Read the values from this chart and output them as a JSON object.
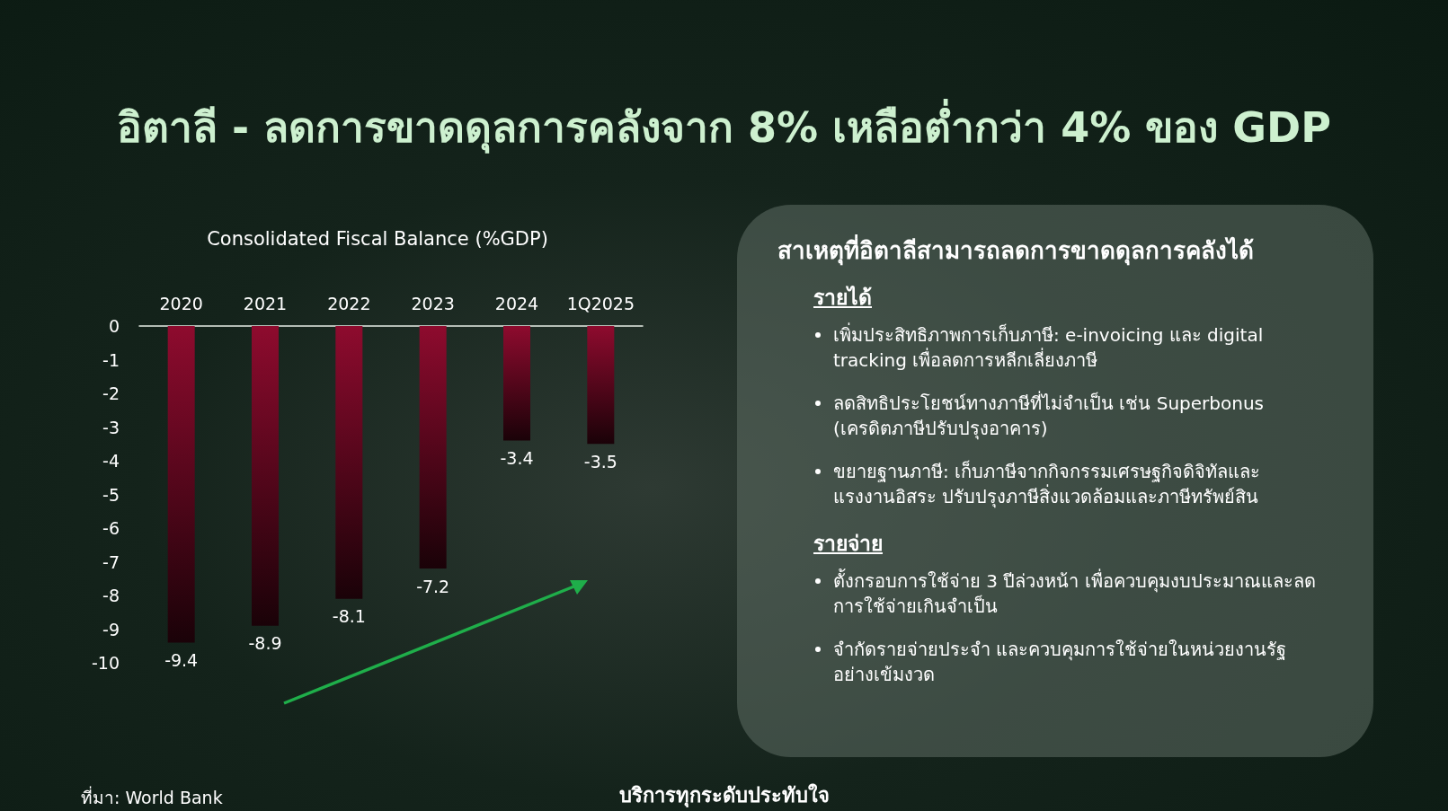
{
  "chart_data": [
    {
      "type": "other",
      "title": "อิตาลี - ลดการขาดดุลการคลังจาก 8% เหลือต่ำกว่า 4% ของ GDP"
    },
    {
      "type": "bar",
      "title": "Consolidated Fiscal Balance (%GDP)",
      "categories": [
        "2020",
        "2021",
        "2022",
        "2023",
        "2024",
        "1Q2025"
      ],
      "values": [
        -9.4,
        -8.9,
        -8.1,
        -7.2,
        -3.4,
        -3.5
      ],
      "color": "#8e0b2e",
      "ylim": [
        -10,
        0
      ],
      "yticks": [
        0,
        -1,
        -2,
        -3,
        -4,
        -5,
        -6,
        -7,
        -8,
        -9,
        -10
      ],
      "grid": false,
      "data_labels": true,
      "annotations": [
        "ที่มา: World Bank"
      ]
    },
    {
      "type": "other",
      "title": "สาเหตุที่อิตาลีสามารถลดการขาดดุลการคลังได้"
    },
    {
      "type": "other",
      "title": "รายได้",
      "annotations": [
        "เพิ่มประสิทธิภาพการเก็บภาษี: e-invoicing และ digital tracking เพื่อลดการหลีกเลี่ยงภาษี",
        "ลดสิทธิประโยชน์ทางภาษีที่ไม่จำเป็น เช่น Superbonus (เครดิตภาษีปรับปรุงอาคาร)",
        "ขยายฐานภาษี: เก็บภาษีจากกิจกรรมเศรษฐกิจดิจิทัลและแรงงานอิสระ ปรับปรุงภาษีสิ่งแวดล้อมและภาษีทรัพย์สิน"
      ]
    },
    {
      "type": "other",
      "title": "รายจ่าย",
      "annotations": [
        "ตั้งกรอบการใช้จ่าย 3 ปีล่วงหน้า เพื่อควบคุมงบประมาณและลดการใช้จ่ายเกินจำเป็น",
        "จำกัดรายจ่ายประจำ และควบคุมการใช้จ่ายในหน่วยงานรัฐอย่างเข้มงวด"
      ]
    },
    {
      "type": "other",
      "annotations": [
        "บริการทุกระดับประทับใจ"
      ]
    }
  ]
}
